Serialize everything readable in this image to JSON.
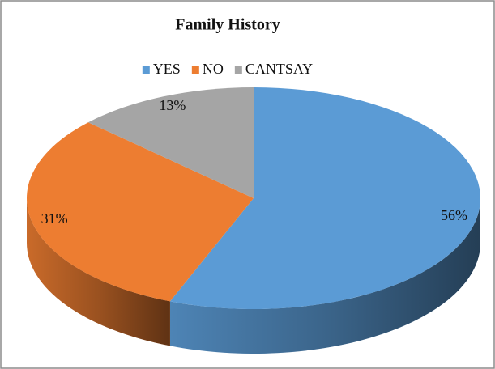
{
  "chart_data": {
    "type": "pie",
    "title": "Family History",
    "categories": [
      "YES",
      "NO",
      "CANTSAY"
    ],
    "values": [
      56,
      31,
      13
    ],
    "value_labels": [
      "56%",
      "31%",
      "13%"
    ],
    "colors": [
      "#5b9bd5",
      "#ed7d31",
      "#a5a5a5"
    ],
    "legend": "top"
  }
}
